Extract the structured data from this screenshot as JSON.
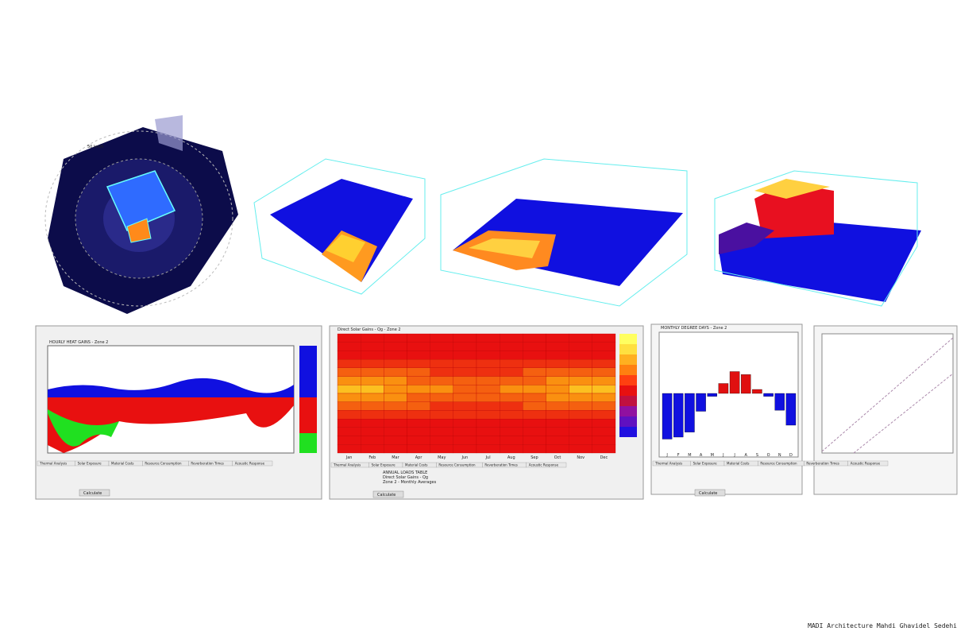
{
  "wind_rose": {
    "speed_label": "50 km/h"
  },
  "tabs": [
    "Thermal Analysis",
    "Solar Exposure",
    "Material Costs",
    "Resource Consumption",
    "Reverberation Times",
    "Acoustic Response"
  ],
  "heat_gains": {
    "title": "HOURLY HEAT GAINS - Zone 2",
    "button": "Calculate"
  },
  "solar_gains": {
    "title": "Direct Solar Gains - Qg - Zone 2",
    "months": [
      "Jan",
      "Feb",
      "Mar",
      "Apr",
      "May",
      "Jun",
      "Jul",
      "Aug",
      "Sep",
      "Oct",
      "Nov",
      "Dec"
    ],
    "table_lines": [
      "ANNUAL LOADS TABLE",
      "Direct Solar Gains - Qg",
      "Zone 2 - Monthly Averages"
    ],
    "button": "Calculate"
  },
  "degree_days": {
    "title": "MONTHLY DEGREE DAYS - Zone 2",
    "categories": [
      "J",
      "F",
      "M",
      "A",
      "M",
      "J",
      "J",
      "A",
      "S",
      "O",
      "N",
      "D"
    ],
    "values": [
      -230,
      -220,
      -195,
      -90,
      -15,
      50,
      110,
      95,
      20,
      -15,
      -85,
      -160
    ],
    "ylim": [
      -300,
      300
    ],
    "color": "#1010e0",
    "color_positive": "#e01010",
    "button": "Calculate"
  },
  "credit": "MADI Architecture Mahdi Ghavidel Sedehi"
}
